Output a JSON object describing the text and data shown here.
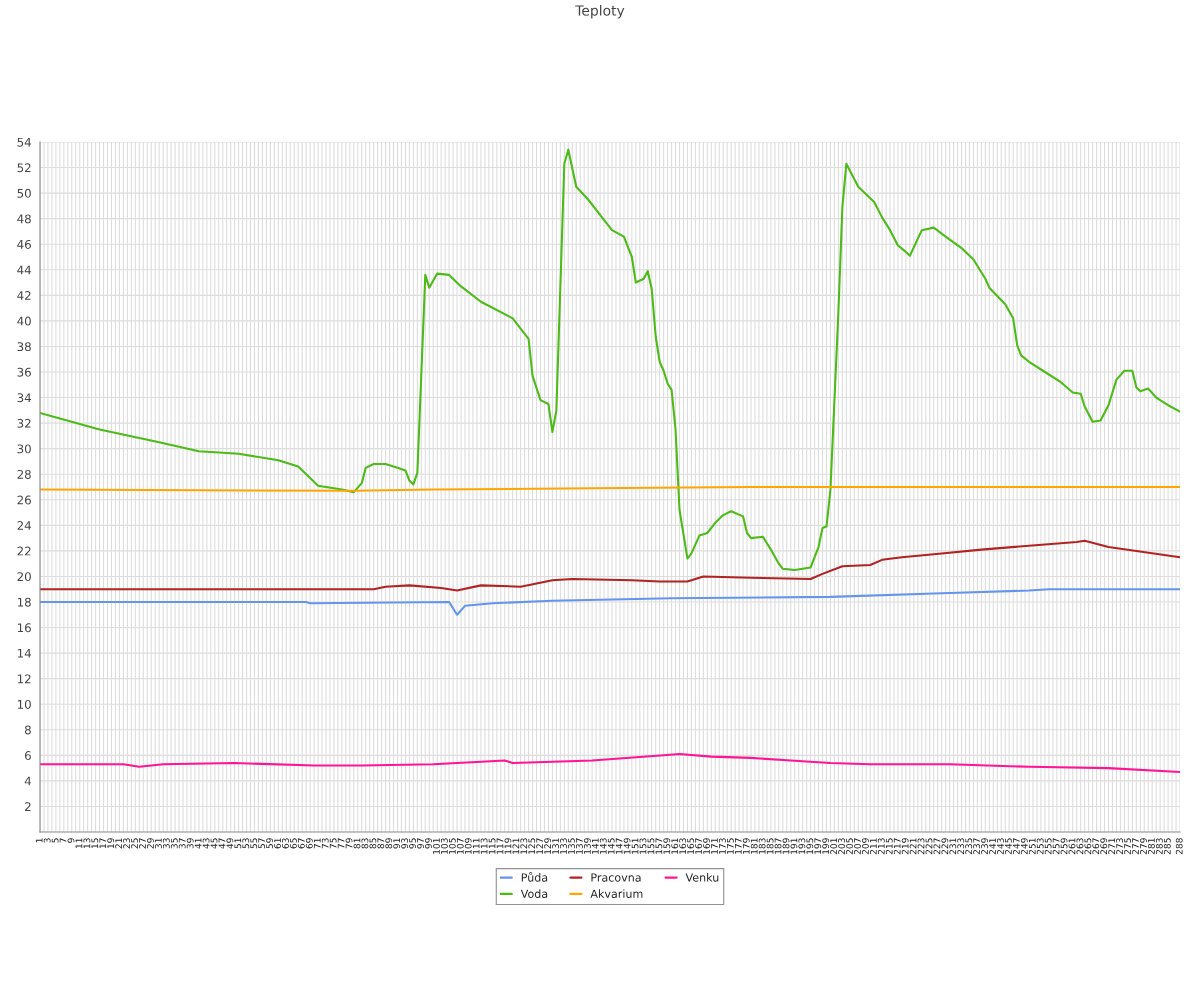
{
  "chart_data": {
    "type": "line",
    "title": "Teploty",
    "xlim": [
      1,
      288
    ],
    "xticks": [
      1,
      {
        "value": 2,
        "label": null
      },
      3,
      {
        "value": 4,
        "label": null
      },
      5,
      {
        "value": 6,
        "label": null
      },
      7,
      {
        "value": 8,
        "label": null
      },
      9,
      {
        "value": 10,
        "label": null
      },
      11,
      {
        "value": 12,
        "label": null
      },
      13,
      {
        "value": 14,
        "label": null
      },
      15,
      {
        "value": 16,
        "label": null
      },
      17,
      {
        "value": 18,
        "label": null
      },
      19,
      {
        "value": 20,
        "label": null
      },
      21,
      {
        "value": 22,
        "label": null
      },
      23,
      {
        "value": 24,
        "label": null
      },
      25,
      {
        "value": 26,
        "label": null
      },
      27,
      {
        "value": 28,
        "label": null
      },
      29,
      {
        "value": 30,
        "label": null
      },
      31,
      {
        "value": 32,
        "label": null
      },
      33,
      {
        "value": 34,
        "label": null
      },
      35,
      {
        "value": 36,
        "label": null
      },
      37,
      {
        "value": 38,
        "label": null
      },
      39,
      {
        "value": 40,
        "label": null
      },
      41,
      {
        "value": 42,
        "label": null
      },
      43,
      {
        "value": 44,
        "label": null
      },
      45,
      {
        "value": 46,
        "label": null
      },
      47,
      {
        "value": 48,
        "label": null
      },
      49,
      {
        "value": 50,
        "label": null
      },
      51,
      {
        "value": 52,
        "label": null
      },
      53,
      {
        "value": 54,
        "label": null
      },
      55,
      {
        "value": 56,
        "label": null
      },
      57,
      {
        "value": 58,
        "label": null
      },
      59,
      {
        "value": 60,
        "label": null
      },
      61,
      {
        "value": 62,
        "label": null
      },
      63,
      {
        "value": 64,
        "label": null
      },
      65,
      {
        "value": 66,
        "label": null
      },
      67,
      {
        "value": 68,
        "label": null
      },
      69,
      {
        "value": 70,
        "label": null
      },
      71,
      {
        "value": 72,
        "label": null
      },
      73,
      {
        "value": 74,
        "label": null
      },
      75,
      {
        "value": 76,
        "label": null
      },
      77,
      {
        "value": 78,
        "label": null
      },
      79,
      {
        "value": 80,
        "label": null
      },
      81,
      {
        "value": 82,
        "label": null
      },
      83,
      {
        "value": 84,
        "label": null
      },
      85,
      {
        "value": 86,
        "label": null
      },
      87,
      {
        "value": 88,
        "label": null
      },
      89,
      {
        "value": 90,
        "label": null
      },
      91,
      {
        "value": 92,
        "label": null
      },
      93,
      {
        "value": 94,
        "label": null
      },
      95,
      {
        "value": 96,
        "label": null
      },
      97,
      {
        "value": 98,
        "label": null
      },
      99,
      {
        "value": 100,
        "label": null
      },
      101,
      {
        "value": 102,
        "label": null
      },
      103,
      {
        "value": 104,
        "label": null
      },
      105,
      {
        "value": 106,
        "label": null
      },
      107,
      {
        "value": 108,
        "label": null
      },
      109,
      {
        "value": 110,
        "label": null
      },
      111,
      {
        "value": 112,
        "label": null
      },
      113,
      {
        "value": 114,
        "label": null
      },
      115,
      {
        "value": 116,
        "label": null
      },
      117,
      {
        "value": 118,
        "label": null
      },
      119,
      {
        "value": 120,
        "label": null
      },
      121,
      {
        "value": 122,
        "label": null
      },
      123,
      {
        "value": 124,
        "label": null
      },
      125,
      {
        "value": 126,
        "label": null
      },
      127,
      {
        "value": 128,
        "label": null
      },
      129,
      {
        "value": 130,
        "label": null
      },
      131,
      {
        "value": 132,
        "label": null
      },
      133,
      {
        "value": 134,
        "label": null
      },
      135,
      {
        "value": 136,
        "label": null
      },
      137,
      {
        "value": 138,
        "label": null
      },
      139,
      {
        "value": 140,
        "label": null
      },
      141,
      {
        "value": 142,
        "label": null
      },
      143,
      {
        "value": 144,
        "label": null
      },
      145,
      {
        "value": 146,
        "label": null
      },
      147,
      {
        "value": 148,
        "label": null
      },
      149,
      {
        "value": 150,
        "label": null
      },
      151,
      {
        "value": 152,
        "label": null
      },
      153,
      {
        "value": 154,
        "label": null
      },
      155,
      {
        "value": 156,
        "label": null
      },
      157,
      {
        "value": 158,
        "label": null
      },
      159,
      {
        "value": 160,
        "label": null
      },
      161,
      {
        "value": 162,
        "label": null
      },
      163,
      {
        "value": 164,
        "label": null
      },
      165,
      {
        "value": 166,
        "label": null
      },
      167,
      {
        "value": 168,
        "label": null
      },
      169,
      {
        "value": 170,
        "label": null
      },
      171,
      {
        "value": 172,
        "label": null
      },
      173,
      {
        "value": 174,
        "label": null
      },
      175,
      {
        "value": 176,
        "label": null
      },
      177,
      {
        "value": 178,
        "label": null
      },
      179,
      {
        "value": 180,
        "label": null
      },
      181,
      {
        "value": 182,
        "label": null
      },
      183,
      {
        "value": 184,
        "label": null
      },
      185,
      {
        "value": 186,
        "label": null
      },
      187,
      {
        "value": 188,
        "label": null
      },
      189,
      {
        "value": 190,
        "label": null
      },
      191,
      {
        "value": 192,
        "label": null
      },
      193,
      {
        "value": 194,
        "label": null
      },
      195,
      {
        "value": 196,
        "label": null
      },
      197,
      {
        "value": 198,
        "label": null
      },
      199,
      {
        "value": 200,
        "label": null
      },
      201,
      {
        "value": 202,
        "label": null
      },
      203,
      {
        "value": 204,
        "label": null
      },
      205,
      {
        "value": 206,
        "label": null
      },
      207,
      {
        "value": 208,
        "label": null
      },
      209,
      {
        "value": 210,
        "label": null
      },
      211,
      {
        "value": 212,
        "label": null
      },
      213,
      {
        "value": 214,
        "label": null
      },
      215,
      {
        "value": 216,
        "label": null
      },
      217,
      {
        "value": 218,
        "label": null
      },
      219,
      {
        "value": 220,
        "label": null
      },
      221,
      {
        "value": 222,
        "label": null
      },
      223,
      {
        "value": 224,
        "label": null
      },
      225,
      {
        "value": 226,
        "label": null
      },
      227,
      {
        "value": 228,
        "label": null
      },
      229,
      {
        "value": 230,
        "label": null
      },
      231,
      {
        "value": 232,
        "label": null
      },
      233,
      {
        "value": 234,
        "label": null
      },
      235,
      {
        "value": 236,
        "label": null
      },
      237,
      {
        "value": 238,
        "label": null
      },
      239,
      {
        "value": 240,
        "label": null
      },
      241,
      {
        "value": 242,
        "label": null
      },
      243,
      {
        "value": 244,
        "label": null
      },
      245,
      {
        "value": 246,
        "label": null
      },
      247,
      {
        "value": 248,
        "label": null
      },
      249,
      {
        "value": 250,
        "label": null
      },
      251,
      {
        "value": 252,
        "label": null
      },
      253,
      {
        "value": 254,
        "label": null
      },
      255,
      {
        "value": 256,
        "label": null
      },
      257,
      {
        "value": 258,
        "label": null
      },
      259,
      {
        "value": 260,
        "label": null
      },
      261,
      {
        "value": 262,
        "label": null
      },
      263,
      {
        "value": 264,
        "label": null
      },
      265,
      {
        "value": 266,
        "label": null
      },
      267,
      {
        "value": 268,
        "label": null
      },
      269,
      {
        "value": 270,
        "label": null
      },
      271,
      {
        "value": 272,
        "label": null
      },
      273,
      {
        "value": 274,
        "label": null
      },
      275,
      {
        "value": 276,
        "label": null
      },
      277,
      {
        "value": 278,
        "label": null
      },
      279,
      {
        "value": 280,
        "label": null
      },
      281,
      {
        "value": 282,
        "label": null
      },
      283,
      {
        "value": 284,
        "label": null
      },
      285,
      {
        "value": 286,
        "label": null
      },
      {
        "value": 287,
        "label": null
      },
      288
    ],
    "ylim": [
      0,
      54
    ],
    "yticks": [
      2,
      4,
      6,
      8,
      10,
      12,
      14,
      16,
      18,
      20,
      22,
      24,
      26,
      28,
      30,
      32,
      34,
      36,
      38,
      40,
      42,
      44,
      46,
      48,
      50,
      52,
      54
    ],
    "grid": true,
    "legend": "bottom",
    "series": [
      {
        "name": "Půda",
        "color": "#6495ed",
        "x": [
          1,
          68,
          69,
          104,
          106,
          108,
          115,
          130,
          145,
          160,
          200,
          230,
          250,
          255,
          288
        ],
        "values": [
          18.0,
          18.0,
          17.9,
          18.0,
          17.0,
          17.7,
          17.9,
          18.1,
          18.2,
          18.3,
          18.4,
          18.7,
          18.9,
          19.0,
          19.0
        ]
      },
      {
        "name": "Voda",
        "color": "#4cbb17",
        "x": [
          1,
          16,
          31,
          41,
          51,
          61,
          66,
          69,
          71,
          77,
          80,
          82,
          83,
          85,
          88,
          91,
          93,
          94,
          95,
          96,
          98,
          99,
          101,
          104,
          107,
          112,
          120,
          122,
          124,
          125,
          127,
          129,
          130,
          131,
          133,
          134,
          136,
          139,
          142,
          145,
          148,
          150,
          151,
          153,
          154,
          155,
          156,
          157,
          158,
          159,
          160,
          161,
          162,
          164,
          165,
          167,
          169,
          171,
          173,
          175,
          178,
          179,
          180,
          183,
          184,
          185,
          187,
          188,
          191,
          195,
          197,
          198,
          199,
          200,
          202,
          203,
          204,
          207,
          211,
          213,
          215,
          217,
          219,
          220,
          223,
          226,
          229,
          233,
          236,
          239,
          240,
          244,
          246,
          247,
          248,
          250,
          254,
          258,
          261,
          263,
          264,
          266,
          268,
          270,
          272,
          274,
          276,
          277,
          278,
          280,
          282,
          285,
          288
        ],
        "values": [
          32.8,
          31.5,
          30.5,
          29.8,
          29.6,
          29.1,
          28.6,
          27.7,
          27.1,
          26.8,
          26.6,
          27.3,
          28.5,
          28.8,
          28.8,
          28.5,
          28.3,
          27.5,
          27.2,
          28.1,
          43.6,
          42.6,
          43.7,
          43.6,
          42.7,
          41.5,
          40.2,
          39.4,
          38.6,
          35.7,
          33.8,
          33.5,
          31.3,
          33.0,
          52.3,
          53.4,
          50.5,
          49.5,
          48.3,
          47.1,
          46.6,
          45.0,
          43.0,
          43.3,
          43.9,
          42.5,
          38.8,
          36.8,
          36.1,
          35.1,
          34.6,
          31.5,
          25.2,
          21.4,
          21.8,
          23.2,
          23.4,
          24.2,
          24.8,
          25.1,
          24.7,
          23.4,
          23.0,
          23.1,
          22.6,
          22.1,
          21.0,
          20.6,
          20.5,
          20.7,
          22.3,
          23.8,
          23.9,
          26.8,
          40.7,
          48.9,
          52.3,
          50.5,
          49.3,
          48.1,
          47.1,
          45.9,
          45.4,
          45.1,
          47.1,
          47.3,
          46.6,
          45.7,
          44.8,
          43.3,
          42.6,
          41.3,
          40.2,
          38.1,
          37.3,
          36.8,
          36.0,
          35.2,
          34.4,
          34.3,
          33.3,
          32.1,
          32.2,
          33.4,
          35.4,
          36.1,
          36.1,
          34.8,
          34.5,
          34.7,
          34.0,
          33.4,
          32.9
        ]
      },
      {
        "name": "Pracovna",
        "color": "#b22222",
        "x": [
          1,
          85,
          88,
          94,
          102,
          106,
          112,
          122,
          130,
          135,
          150,
          157,
          164,
          168,
          180,
          195,
          198,
          203,
          210,
          213,
          218,
          228,
          238,
          250,
          262,
          264,
          270,
          288
        ],
        "values": [
          19.0,
          19.0,
          19.2,
          19.3,
          19.1,
          18.9,
          19.3,
          19.2,
          19.7,
          19.8,
          19.7,
          19.6,
          19.6,
          20.0,
          19.9,
          19.8,
          20.2,
          20.8,
          20.9,
          21.3,
          21.5,
          21.8,
          22.1,
          22.4,
          22.7,
          22.8,
          22.3,
          21.5
        ]
      },
      {
        "name": "Akvarium",
        "color": "#ffa500",
        "x": [
          1,
          80,
          100,
          140,
          180,
          288
        ],
        "values": [
          26.8,
          26.7,
          26.8,
          26.9,
          27.0,
          27.0
        ]
      },
      {
        "name": "Venku",
        "color": "#ff1493",
        "x": [
          1,
          22,
          26,
          32,
          50,
          70,
          82,
          100,
          118,
          120,
          140,
          158,
          162,
          170,
          180,
          190,
          200,
          210,
          230,
          250,
          270,
          288
        ],
        "values": [
          5.3,
          5.3,
          5.1,
          5.3,
          5.4,
          5.2,
          5.2,
          5.3,
          5.6,
          5.4,
          5.6,
          6.0,
          6.1,
          5.9,
          5.8,
          5.6,
          5.4,
          5.3,
          5.3,
          5.1,
          5.0,
          4.7
        ]
      }
    ]
  }
}
